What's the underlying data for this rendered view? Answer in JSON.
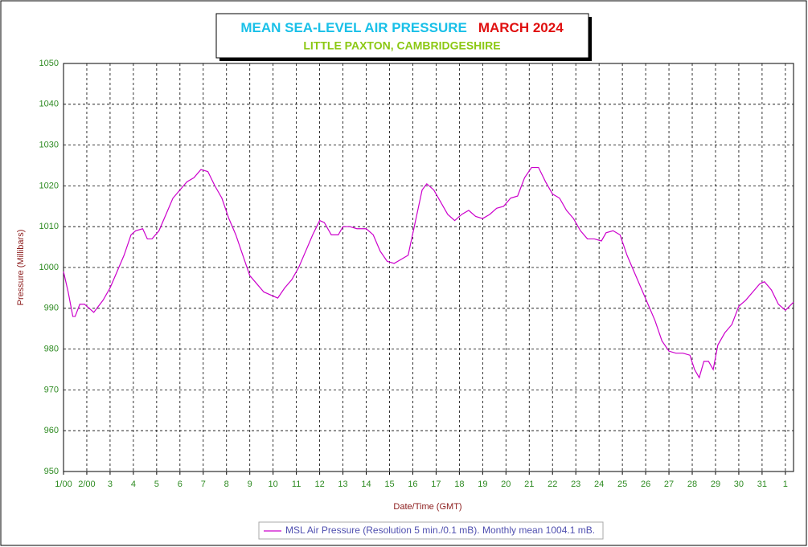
{
  "chart_data": {
    "type": "line",
    "title": "MEAN SEA-LEVEL AIR PRESSURE",
    "title_month": "MARCH 2024",
    "subtitle": "LITTLE PAXTON, CAMBRIDGESHIRE",
    "xlabel": "Date/Time (GMT)",
    "ylabel": "Pressure (Millibars)",
    "xlim": [
      1,
      32.35
    ],
    "ylim": [
      950,
      1050
    ],
    "yticks": [
      950,
      960,
      970,
      980,
      990,
      1000,
      1010,
      1020,
      1030,
      1040,
      1050
    ],
    "xticks": [
      {
        "value": 1,
        "label": "1/00"
      },
      {
        "value": 2,
        "label": "2/00"
      },
      3,
      4,
      5,
      6,
      7,
      8,
      9,
      10,
      11,
      12,
      13,
      14,
      15,
      16,
      17,
      18,
      19,
      20,
      21,
      22,
      23,
      24,
      25,
      26,
      27,
      28,
      29,
      30,
      31,
      {
        "value": 32,
        "label": "1"
      }
    ],
    "grid": true,
    "x": [
      1.0,
      1.2,
      1.4,
      1.5,
      1.7,
      1.9,
      2.1,
      2.3,
      2.5,
      2.7,
      3.0,
      3.3,
      3.6,
      3.9,
      4.1,
      4.4,
      4.6,
      4.8,
      5.1,
      5.4,
      5.7,
      6.0,
      6.3,
      6.6,
      6.9,
      7.2,
      7.5,
      7.8,
      8.1,
      8.4,
      8.7,
      9.0,
      9.3,
      9.6,
      10.0,
      10.2,
      10.5,
      10.8,
      11.1,
      11.4,
      11.7,
      12.0,
      12.2,
      12.5,
      12.8,
      13.0,
      13.3,
      13.6,
      14.0,
      14.3,
      14.6,
      14.9,
      15.2,
      15.5,
      15.8,
      16.1,
      16.4,
      16.6,
      16.9,
      17.2,
      17.5,
      17.8,
      18.1,
      18.4,
      18.7,
      19.0,
      19.3,
      19.6,
      19.9,
      20.2,
      20.5,
      20.8,
      21.1,
      21.4,
      21.7,
      22.0,
      22.3,
      22.6,
      22.9,
      23.2,
      23.5,
      23.8,
      24.1,
      24.3,
      24.6,
      24.9,
      25.2,
      25.5,
      25.8,
      26.1,
      26.4,
      26.7,
      27.0,
      27.3,
      27.6,
      27.9,
      28.1,
      28.3,
      28.5,
      28.7,
      28.9,
      29.1,
      29.4,
      29.7,
      30.0,
      30.3,
      30.6,
      30.9,
      31.1,
      31.4,
      31.7,
      32.0,
      32.35
    ],
    "series": [
      {
        "name": "MSL Air Pressure (Resolution 5 min./0.1 mB). Monthly mean 1004.1 mB.",
        "color": "#cc00cc",
        "values": [
          999,
          994,
          988,
          988,
          991,
          991,
          990,
          989,
          990.5,
          992,
          995,
          999,
          1003,
          1008,
          1009,
          1009.5,
          1007,
          1007,
          1009,
          1013,
          1017,
          1019,
          1021,
          1022,
          1024,
          1023.5,
          1020,
          1017,
          1012,
          1008,
          1003,
          998,
          996,
          994,
          993,
          992.5,
          995,
          997,
          1000,
          1004,
          1008,
          1011.5,
          1011,
          1008,
          1008,
          1010,
          1010,
          1009.5,
          1009.5,
          1008,
          1004,
          1001.5,
          1001,
          1002,
          1003,
          1011,
          1019,
          1020.5,
          1019,
          1016,
          1013,
          1011.5,
          1013,
          1014,
          1012.5,
          1012,
          1013,
          1014.5,
          1015,
          1017,
          1017.5,
          1022,
          1024.5,
          1024.5,
          1021,
          1018,
          1017,
          1014,
          1012,
          1009,
          1007,
          1007,
          1006.5,
          1008.5,
          1009,
          1008,
          1003,
          999,
          995,
          991,
          987,
          982,
          979.5,
          979,
          979,
          978.5,
          975,
          973,
          977,
          977,
          975,
          981,
          984,
          986,
          990.5,
          992,
          994,
          996,
          996.5,
          994.5,
          991,
          989.5,
          991.5
        ]
      }
    ]
  }
}
